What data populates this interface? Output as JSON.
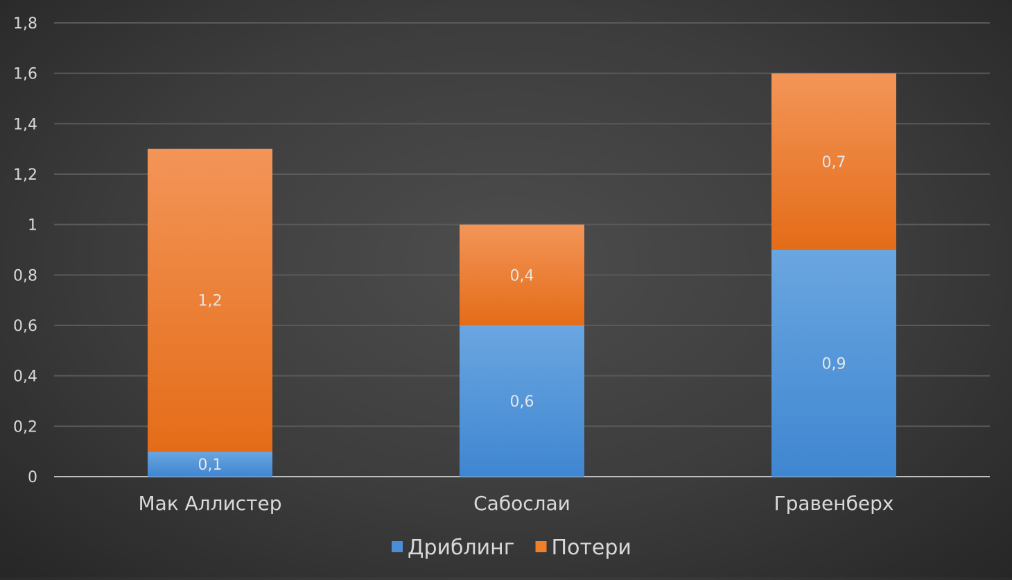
{
  "chart_data": {
    "type": "bar",
    "stacked": true,
    "categories": [
      "Мак Аллистер",
      "Сабослаи",
      "Гравенберх"
    ],
    "series": [
      {
        "name": "Дриблинг",
        "values": [
          0.1,
          0.6,
          0.9
        ],
        "color": "#4a8fd6"
      },
      {
        "name": "Потери",
        "values": [
          1.2,
          0.4,
          0.7
        ],
        "color": "#f07f2a"
      }
    ],
    "data_labels": [
      [
        "0,1",
        "0,6",
        "0,9"
      ],
      [
        "1,2",
        "0,4",
        "0,7"
      ]
    ],
    "yticks": [
      "0",
      "0,2",
      "0,4",
      "0,6",
      "0,8",
      "1",
      "1,2",
      "1,4",
      "1,6",
      "1,8"
    ],
    "ylim": [
      0,
      1.8
    ],
    "grid": true,
    "legend": "bottom",
    "colors": {
      "background": "#3c3c3c",
      "grid": "#5a5a5a",
      "axis": "#bfbfbf",
      "text": "#d9d9d9",
      "label": "#e6e6e6"
    }
  }
}
